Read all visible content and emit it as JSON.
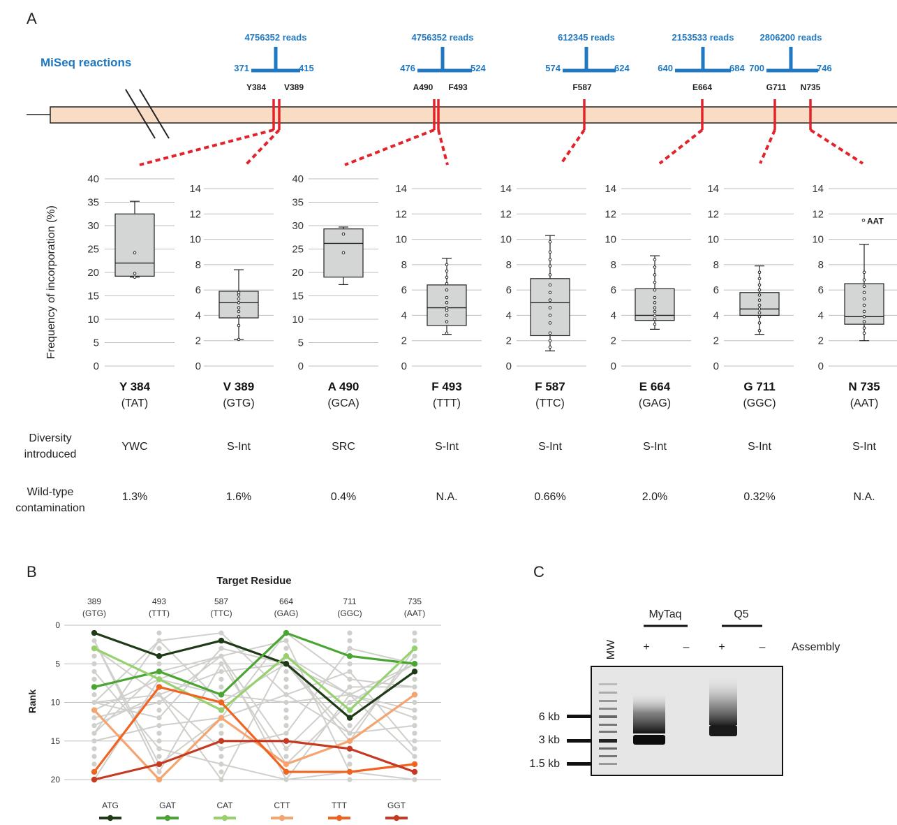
{
  "panels": {
    "a": "A",
    "b": "B",
    "c": "C"
  },
  "panel_a": {
    "miseq_label": "MiSeq reactions",
    "reactions": [
      {
        "reads": "4756352 reads",
        "start": "371",
        "end": "415",
        "muts": [
          "Y384",
          "V389"
        ]
      },
      {
        "reads": "4756352 reads",
        "start": "476",
        "end": "524",
        "muts": [
          "A490",
          "F493"
        ]
      },
      {
        "reads": "612345 reads",
        "start": "574",
        "end": "624",
        "muts": [
          "F587"
        ]
      },
      {
        "reads": "2153533 reads",
        "start": "640",
        "end": "684",
        "muts": [
          "E664"
        ]
      },
      {
        "reads": "2806200 reads",
        "start": "700",
        "end": "746",
        "muts": [
          "G711",
          "N735"
        ]
      }
    ],
    "ylabel": "Frequency of incorporation (%)",
    "outlier_label": "AAT",
    "row_labels": {
      "diversity": [
        "Diversity",
        "introduced"
      ],
      "wildtype": [
        "Wild-type",
        "contamination"
      ]
    }
  },
  "chart_data": [
    {
      "type": "box",
      "ylabel": "Frequency of incorporation (%)",
      "plots": [
        {
          "residue": "Y 384",
          "codon": "(TAT)",
          "ylim": [
            0,
            40
          ],
          "ticks": [
            0,
            5,
            10,
            15,
            20,
            25,
            30,
            35,
            40
          ],
          "min": 19,
          "q1": 19.2,
          "median": 22,
          "q3": 32.5,
          "max": 35.2,
          "points": [
            19,
            19.8,
            24.2
          ],
          "diversity": "YWC",
          "wildtype": "1.3%"
        },
        {
          "residue": "V 389",
          "codon": "(GTG)",
          "ylim": [
            0,
            14
          ],
          "ticks": [
            0,
            2,
            4,
            6,
            8,
            10,
            12,
            14
          ],
          "min": 2.1,
          "q1": 3.8,
          "median": 5.0,
          "q3": 5.9,
          "max": 7.6,
          "points": [
            2.1,
            3.2,
            3.9,
            4.3,
            4.6,
            5.0,
            5.3,
            5.6,
            5.8
          ],
          "diversity": "S-Int",
          "wildtype": "1.6%"
        },
        {
          "residue": "A 490",
          "codon": "(GCA)",
          "ylim": [
            0,
            40
          ],
          "ticks": [
            0,
            5,
            10,
            15,
            20,
            25,
            30,
            35,
            40
          ],
          "min": 17.4,
          "q1": 19,
          "median": 26.2,
          "q3": 29.3,
          "max": 29.7,
          "points": [
            24.2,
            28.2
          ],
          "diversity": "SRC",
          "wildtype": "0.4%"
        },
        {
          "residue": "F 493",
          "codon": "(TTT)",
          "ylim": [
            0,
            14
          ],
          "ticks": [
            0,
            2,
            4,
            6,
            8,
            10,
            12,
            14
          ],
          "min": 2.5,
          "q1": 3.2,
          "median": 4.6,
          "q3": 6.4,
          "max": 8.5,
          "points": [
            2.6,
            3.5,
            4.0,
            4.4,
            4.6,
            5.0,
            5.4,
            6.0,
            6.5,
            7.0,
            7.5,
            8.0
          ],
          "diversity": "S-Int",
          "wildtype": "N.A."
        },
        {
          "residue": "F 587",
          "codon": "(TTC)",
          "ylim": [
            0,
            14
          ],
          "ticks": [
            0,
            2,
            4,
            6,
            8,
            10,
            12,
            14
          ],
          "min": 1.2,
          "q1": 2.4,
          "median": 5.0,
          "q3": 6.9,
          "max": 10.3,
          "points": [
            1.5,
            2.0,
            2.6,
            3.4,
            4.0,
            4.6,
            5.2,
            5.8,
            6.4,
            7.2,
            7.9,
            8.4,
            9.0,
            9.8
          ],
          "diversity": "S-Int",
          "wildtype": "0.66%"
        },
        {
          "residue": "E 664",
          "codon": "(GAG)",
          "ylim": [
            0,
            14
          ],
          "ticks": [
            0,
            2,
            4,
            6,
            8,
            10,
            12,
            14
          ],
          "min": 2.9,
          "q1": 3.6,
          "median": 4.0,
          "q3": 6.1,
          "max": 8.7,
          "points": [
            3.3,
            3.7,
            4.0,
            4.3,
            4.6,
            5.0,
            5.4,
            6.0,
            6.6,
            7.2,
            7.8,
            8.4
          ],
          "diversity": "S-Int",
          "wildtype": "2.0%"
        },
        {
          "residue": "G 711",
          "codon": "(GGC)",
          "ylim": [
            0,
            14
          ],
          "ticks": [
            0,
            2,
            4,
            6,
            8,
            10,
            12,
            14
          ],
          "min": 2.5,
          "q1": 4.0,
          "median": 4.5,
          "q3": 5.8,
          "max": 7.9,
          "points": [
            2.8,
            3.4,
            3.9,
            4.2,
            4.5,
            4.8,
            5.2,
            5.6,
            6.0,
            6.4,
            6.9,
            7.4
          ],
          "diversity": "S-Int",
          "wildtype": "0.32%"
        },
        {
          "residue": "N 735",
          "codon": "(AAT)",
          "ylim": [
            0,
            14
          ],
          "ticks": [
            0,
            2,
            4,
            6,
            8,
            10,
            12,
            14
          ],
          "min": 2.0,
          "q1": 3.3,
          "median": 3.9,
          "q3": 6.5,
          "max": 9.6,
          "points": [
            2.6,
            3.0,
            3.5,
            3.9,
            4.3,
            4.8,
            5.3,
            5.8,
            6.3,
            6.8,
            7.4
          ],
          "outlier": 11.5,
          "diversity": "S-Int",
          "wildtype": "N.A."
        }
      ]
    },
    {
      "type": "line",
      "title": "Target Residue",
      "ylabel": "Rank",
      "ylim": [
        0,
        20
      ],
      "yticks": [
        0,
        5,
        10,
        15,
        20
      ],
      "categories": [
        {
          "pos": "389",
          "codon": "(GTG)"
        },
        {
          "pos": "493",
          "codon": "(TTT)"
        },
        {
          "pos": "587",
          "codon": "(TTC)"
        },
        {
          "pos": "664",
          "codon": "(GAG)"
        },
        {
          "pos": "711",
          "codon": "(GGC)"
        },
        {
          "pos": "735",
          "codon": "(AAT)"
        }
      ],
      "series": [
        {
          "name": "ATG",
          "color": "#1e3a17",
          "values": [
            1,
            4,
            2,
            5,
            12,
            6
          ]
        },
        {
          "name": "GAT",
          "color": "#4aa534",
          "values": [
            8,
            6,
            9,
            1,
            4,
            5
          ]
        },
        {
          "name": "CAT",
          "color": "#97d06f",
          "values": [
            3,
            7,
            11,
            4,
            11,
            3
          ]
        },
        {
          "name": "CTT",
          "color": "#f4a470",
          "values": [
            11,
            20,
            12,
            18,
            15,
            9
          ]
        },
        {
          "name": "TTT",
          "color": "#ee6420",
          "values": [
            19,
            8,
            10,
            19,
            19,
            18
          ]
        },
        {
          "name": "GGT",
          "color": "#c53a22",
          "values": [
            20,
            18,
            15,
            15,
            16,
            19
          ]
        }
      ],
      "background_color": "#cfcfcb"
    }
  ],
  "panel_c": {
    "mw_label": "MW",
    "groups": [
      "MyTaq",
      "Q5"
    ],
    "signs": [
      "+",
      "–",
      "+",
      "–"
    ],
    "assembly_label": "Assembly",
    "markers": [
      "6 kb",
      "3 kb",
      "1.5 kb"
    ]
  }
}
